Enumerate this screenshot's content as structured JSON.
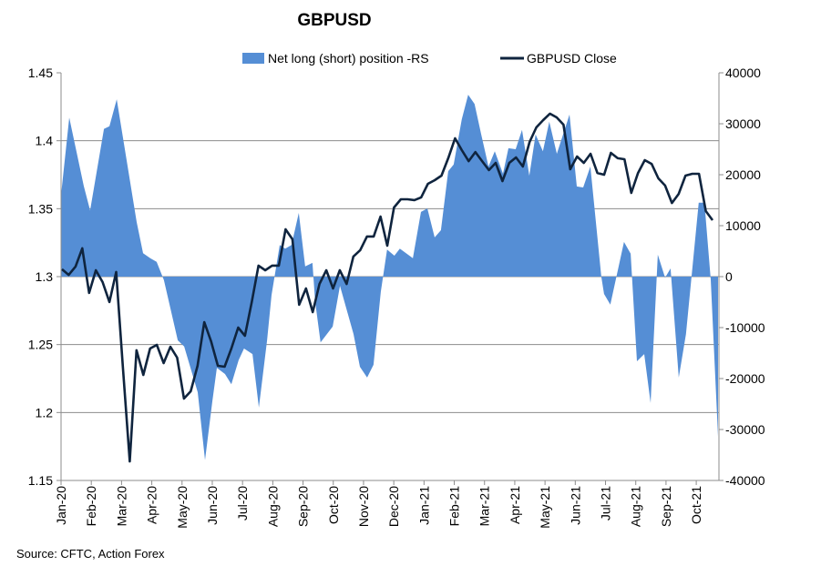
{
  "chart_data": {
    "type": "line",
    "title": "GBPUSD",
    "source": "Source: CFTC, Action Forex",
    "legend": [
      {
        "name": "Net long (short) position -RS",
        "kind": "area",
        "color": "#558ED5"
      },
      {
        "name": "GBPUSD Close",
        "kind": "line",
        "color": "#0F243E"
      }
    ],
    "legend_placement": "top-center",
    "grid": true,
    "x_ticks": [
      "Jan-20",
      "Feb-20",
      "Mar-20",
      "Apr-20",
      "May-20",
      "Jun-20",
      "Jul-20",
      "Aug-20",
      "Sep-20",
      "Oct-20",
      "Nov-20",
      "Dec-20",
      "Jan-21",
      "Feb-21",
      "Mar-21",
      "Apr-21",
      "May-21",
      "Jun-21",
      "Jul-21",
      "Aug-21",
      "Sep-21",
      "Oct-21"
    ],
    "x_range_months": [
      0,
      21.75
    ],
    "left_axis": {
      "ylim": [
        1.15,
        1.45
      ],
      "ticks": [
        "1.15",
        "1.2",
        "1.25",
        "1.3",
        "1.35",
        "1.4",
        "1.45"
      ]
    },
    "right_axis": {
      "ylim": [
        -40000,
        40000
      ],
      "ticks": [
        "-40000",
        "-30000",
        "-20000",
        "-10000",
        "0",
        "10000",
        "20000",
        "30000",
        "40000"
      ]
    },
    "net_position": {
      "x_unit": "months since Jan-20",
      "points": [
        [
          0,
          16000
        ],
        [
          0.27,
          31200
        ],
        [
          0.75,
          17800
        ],
        [
          0.96,
          13000
        ],
        [
          1.42,
          29000
        ],
        [
          1.6,
          29500
        ],
        [
          1.84,
          34800
        ],
        [
          2.5,
          10700
        ],
        [
          2.71,
          4600
        ],
        [
          2.95,
          3600
        ],
        [
          3.16,
          2900
        ],
        [
          3.4,
          -700
        ],
        [
          3.86,
          -12500
        ],
        [
          4.07,
          -13700
        ],
        [
          4.52,
          -22700
        ],
        [
          4.76,
          -36000
        ],
        [
          5.0,
          -24500
        ],
        [
          5.15,
          -17900
        ],
        [
          5.42,
          -19100
        ],
        [
          5.63,
          -21100
        ],
        [
          5.87,
          -16400
        ],
        [
          6.05,
          -14100
        ],
        [
          6.33,
          -15200
        ],
        [
          6.54,
          -25700
        ],
        [
          6.81,
          -12500
        ],
        [
          6.96,
          -3600
        ],
        [
          7.23,
          6200
        ],
        [
          7.41,
          5500
        ],
        [
          7.62,
          6200
        ],
        [
          7.86,
          12500
        ],
        [
          8.07,
          2000
        ],
        [
          8.31,
          2700
        ],
        [
          8.4,
          -4800
        ],
        [
          8.58,
          -12900
        ],
        [
          8.98,
          -9800
        ],
        [
          9.22,
          -1800
        ],
        [
          9.67,
          -11300
        ],
        [
          9.88,
          -17700
        ],
        [
          10.12,
          -19800
        ],
        [
          10.33,
          -17300
        ],
        [
          10.57,
          -3000
        ],
        [
          10.78,
          5300
        ],
        [
          11.02,
          4100
        ],
        [
          11.2,
          5500
        ],
        [
          11.63,
          3600
        ],
        [
          11.9,
          12700
        ],
        [
          12.11,
          13400
        ],
        [
          12.35,
          7700
        ],
        [
          12.56,
          9100
        ],
        [
          12.8,
          20700
        ],
        [
          12.98,
          22000
        ],
        [
          13.25,
          30900
        ],
        [
          13.46,
          35700
        ],
        [
          13.67,
          33900
        ],
        [
          13.89,
          27900
        ],
        [
          14.13,
          21600
        ],
        [
          14.34,
          24600
        ],
        [
          14.61,
          20200
        ],
        [
          14.79,
          25200
        ],
        [
          15.03,
          25000
        ],
        [
          15.24,
          28800
        ],
        [
          15.48,
          19800
        ],
        [
          15.69,
          27900
        ],
        [
          15.93,
          24600
        ],
        [
          16.14,
          30400
        ],
        [
          16.39,
          24100
        ],
        [
          16.81,
          31800
        ],
        [
          17.05,
          17700
        ],
        [
          17.26,
          17500
        ],
        [
          17.5,
          21600
        ],
        [
          17.86,
          0
        ],
        [
          17.95,
          -3400
        ],
        [
          18.16,
          -5500
        ],
        [
          18.61,
          6800
        ],
        [
          18.83,
          4500
        ],
        [
          19.04,
          -16600
        ],
        [
          19.28,
          -15200
        ],
        [
          19.49,
          -24800
        ],
        [
          19.73,
          4300
        ],
        [
          19.97,
          -200
        ],
        [
          20.15,
          1600
        ],
        [
          20.42,
          -19800
        ],
        [
          20.66,
          -11300
        ],
        [
          21.08,
          14500
        ],
        [
          21.27,
          14500
        ],
        [
          21.48,
          -600
        ],
        [
          21.72,
          -31400
        ]
      ]
    },
    "gbpusd_close": {
      "x_unit": "weekly, starting Jan-20",
      "weeks_per_month": 4.4,
      "values": [
        1.3054,
        1.3013,
        1.3074,
        1.3208,
        1.288,
        1.3047,
        1.296,
        1.2813,
        1.3034,
        1.233,
        1.164,
        1.2458,
        1.2277,
        1.2471,
        1.2498,
        1.2364,
        1.2484,
        1.2404,
        1.2103,
        1.2156,
        1.2344,
        1.2665,
        1.2525,
        1.2344,
        1.2337,
        1.2471,
        1.2625,
        1.2565,
        1.2813,
        1.3081,
        1.3047,
        1.3081,
        1.3081,
        1.3348,
        1.3275,
        1.2793,
        1.2913,
        1.2739,
        1.2946,
        1.3047,
        1.2913,
        1.3047,
        1.2946,
        1.3148,
        1.3195,
        1.3295,
        1.3295,
        1.3442,
        1.3228,
        1.3509,
        1.3569,
        1.3569,
        1.3563,
        1.3583,
        1.3683,
        1.371,
        1.3743,
        1.3871,
        1.4018,
        1.3931,
        1.385,
        1.3917,
        1.385,
        1.3784,
        1.3837,
        1.3703,
        1.3837,
        1.3877,
        1.381,
        1.3991,
        1.4098,
        1.4152,
        1.4199,
        1.4172,
        1.4118,
        1.379,
        1.3884,
        1.3837,
        1.3904,
        1.3763,
        1.375,
        1.3911,
        1.3871,
        1.3864,
        1.3616,
        1.3763,
        1.3857,
        1.383,
        1.3723,
        1.367,
        1.3542,
        1.3609,
        1.3743,
        1.3757,
        1.3757,
        1.3482,
        1.3415
      ]
    }
  }
}
